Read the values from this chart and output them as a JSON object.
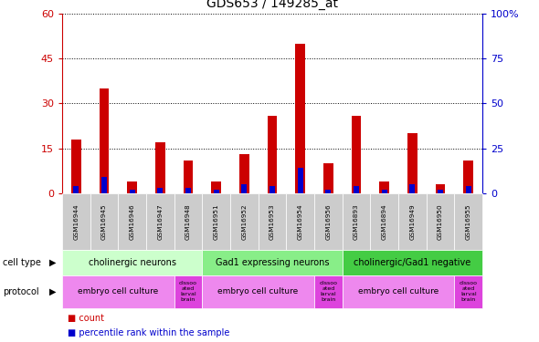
{
  "title": "GDS653 / 149285_at",
  "samples": [
    "GSM16944",
    "GSM16945",
    "GSM16946",
    "GSM16947",
    "GSM16948",
    "GSM16951",
    "GSM16952",
    "GSM16953",
    "GSM16954",
    "GSM16956",
    "GSM16893",
    "GSM16894",
    "GSM16949",
    "GSM16950",
    "GSM16955"
  ],
  "count_values": [
    18,
    35,
    4,
    17,
    11,
    4,
    13,
    26,
    50,
    10,
    26,
    4,
    20,
    3,
    11
  ],
  "percentile_values": [
    4,
    9,
    2,
    3,
    3,
    2,
    5,
    4,
    14,
    2,
    4,
    2,
    5,
    2,
    4
  ],
  "left_ylim": [
    0,
    60
  ],
  "right_ylim": [
    0,
    100
  ],
  "left_yticks": [
    0,
    15,
    30,
    45,
    60
  ],
  "right_yticks": [
    0,
    25,
    50,
    75,
    100
  ],
  "right_yticklabels": [
    "0",
    "25",
    "50",
    "75",
    "100%"
  ],
  "left_ycolor": "#cc0000",
  "right_ycolor": "#0000cc",
  "bar_color_count": "#cc0000",
  "bar_color_pct": "#0000cc",
  "cell_type_groups": [
    {
      "label": "cholinergic neurons",
      "start": 0,
      "end": 5,
      "color": "#ccffcc"
    },
    {
      "label": "Gad1 expressing neurons",
      "start": 5,
      "end": 10,
      "color": "#88ee88"
    },
    {
      "label": "cholinergic/Gad1 negative",
      "start": 10,
      "end": 15,
      "color": "#44cc44"
    }
  ],
  "protocol_groups": [
    {
      "label": "embryo cell culture",
      "start": 0,
      "end": 4,
      "color": "#ee88ee"
    },
    {
      "label": "dissoo\nated\nlarval\nbrain",
      "start": 4,
      "end": 5,
      "color": "#dd44dd"
    },
    {
      "label": "embryo cell culture",
      "start": 5,
      "end": 9,
      "color": "#ee88ee"
    },
    {
      "label": "dissoo\nated\nlarval\nbrain",
      "start": 9,
      "end": 10,
      "color": "#dd44dd"
    },
    {
      "label": "embryo cell culture",
      "start": 10,
      "end": 14,
      "color": "#ee88ee"
    },
    {
      "label": "dissoo\nated\nlarval\nbrain",
      "start": 14,
      "end": 15,
      "color": "#dd44dd"
    }
  ],
  "bg_color": "#ffffff",
  "plot_bg_color": "#ffffff",
  "xticklabel_bg": "#cccccc",
  "figsize": [
    5.9,
    3.75
  ],
  "dpi": 100
}
